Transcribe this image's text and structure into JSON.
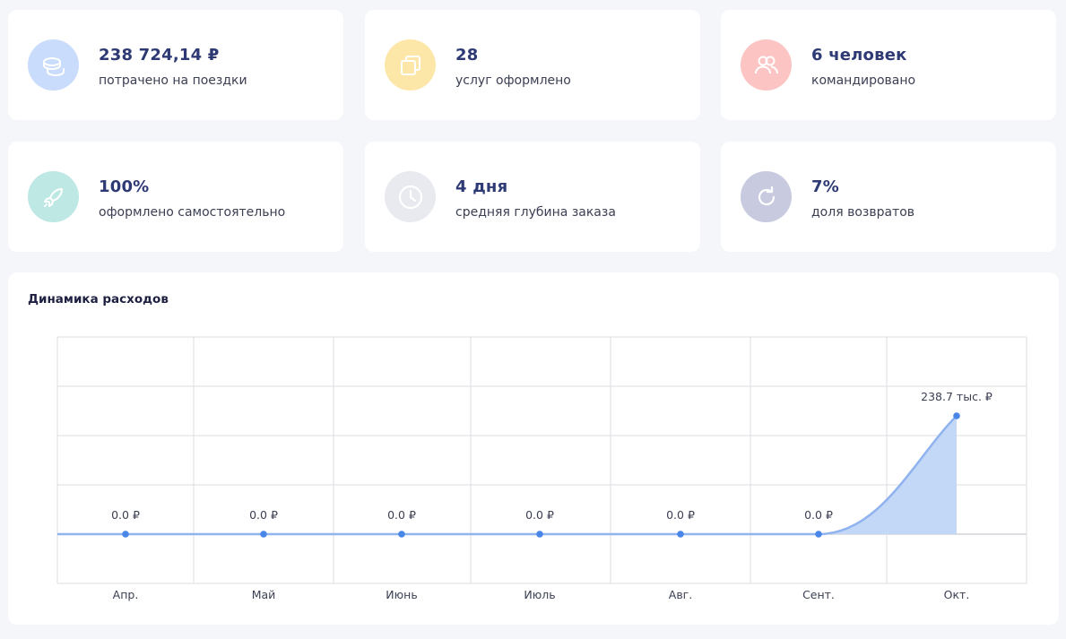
{
  "stats": [
    {
      "value": "238 724,14 ₽",
      "label": "потрачено на поездки",
      "icon": "coins-icon",
      "color": "#c9dcfb"
    },
    {
      "value": "28",
      "label": "услуг оформлено",
      "icon": "copy-icon",
      "color": "#fde7a8"
    },
    {
      "value": "6 человек",
      "label": "командировано",
      "icon": "users-icon",
      "color": "#fdc4c4"
    },
    {
      "value": "100%",
      "label": "оформлено самостоятельно",
      "icon": "rocket-icon",
      "color": "#bde8e3"
    },
    {
      "value": "4 дня",
      "label": "средняя глубина заказа",
      "icon": "clock-icon",
      "color": "#e8eaef"
    },
    {
      "value": "7%",
      "label": "доля возвратов",
      "icon": "refresh-icon",
      "color": "#c8cbe0"
    }
  ],
  "chart": {
    "title": "Динамика расходов"
  },
  "chart_data": {
    "type": "area",
    "title": "Динамика расходов",
    "categories": [
      "Апр.",
      "Май",
      "Июнь",
      "Июль",
      "Авг.",
      "Сент.",
      "Окт."
    ],
    "values": [
      0.0,
      0.0,
      0.0,
      0.0,
      0.0,
      0.0,
      238.7
    ],
    "data_labels": [
      "0.0 ₽",
      "0.0 ₽",
      "0.0 ₽",
      "0.0 ₽",
      "0.0 ₽",
      "0.0 ₽",
      "238.7 тыс. ₽"
    ],
    "unit": "тыс. ₽",
    "grid": true,
    "color": "#4a86e8",
    "fill_color": "#c3d7f7"
  }
}
